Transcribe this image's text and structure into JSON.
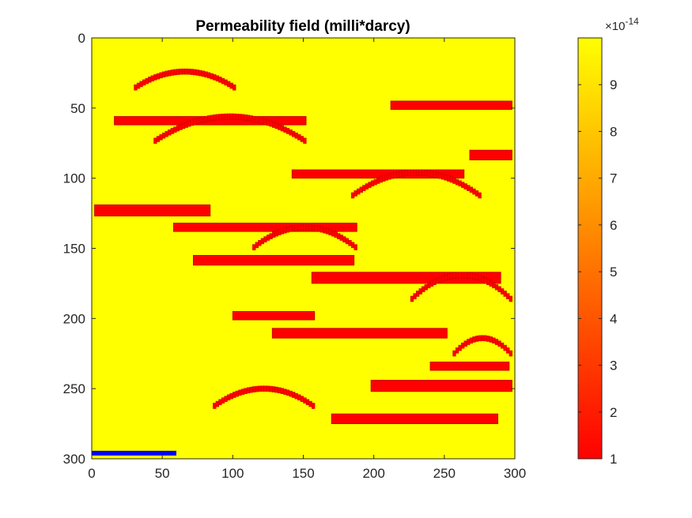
{
  "chart_data": {
    "type": "heatmap",
    "title": "Permeability field (milli*darcy)",
    "xlabel": "",
    "ylabel": "",
    "xlim": [
      0,
      300
    ],
    "ylim": [
      0,
      300
    ],
    "y_reversed": true,
    "xticks": [
      0,
      50,
      100,
      150,
      200,
      250,
      300
    ],
    "yticks": [
      0,
      50,
      100,
      150,
      200,
      250,
      300
    ],
    "background_value": 1e-13,
    "background_color": "#ffff00",
    "channel_color": "#ff0000",
    "channel_edge_color": "#b80000",
    "channel_value": 1e-14,
    "colorbar": {
      "min": 1,
      "max": 10,
      "ticks": [
        1,
        2,
        3,
        4,
        5,
        6,
        7,
        8,
        9
      ],
      "multiplier": "×10",
      "exponent": "-14",
      "colormap": "autumn"
    },
    "bars": [
      {
        "x0": 212,
        "x1": 298,
        "y0": 45,
        "y1": 51
      },
      {
        "x0": 16,
        "x1": 152,
        "y0": 56,
        "y1": 62
      },
      {
        "x0": 268,
        "x1": 298,
        "y0": 80,
        "y1": 87
      },
      {
        "x0": 142,
        "x1": 264,
        "y0": 94,
        "y1": 100
      },
      {
        "x0": 2,
        "x1": 84,
        "y0": 119,
        "y1": 127
      },
      {
        "x0": 58,
        "x1": 188,
        "y0": 132,
        "y1": 138
      },
      {
        "x0": 72,
        "x1": 186,
        "y0": 155,
        "y1": 162
      },
      {
        "x0": 156,
        "x1": 290,
        "y0": 167,
        "y1": 175
      },
      {
        "x0": 100,
        "x1": 158,
        "y0": 195,
        "y1": 201
      },
      {
        "x0": 128,
        "x1": 252,
        "y0": 207,
        "y1": 214
      },
      {
        "x0": 240,
        "x1": 296,
        "y0": 231,
        "y1": 237
      },
      {
        "x0": 198,
        "x1": 298,
        "y0": 244,
        "y1": 252
      },
      {
        "x0": 170,
        "x1": 288,
        "y0": 268,
        "y1": 275
      }
    ],
    "arcs": [
      {
        "x0": 30,
        "x1": 102,
        "y_top": 22,
        "y_end": 34
      },
      {
        "x0": 44,
        "x1": 152,
        "y_top": 54,
        "y_end": 72
      },
      {
        "x0": 184,
        "x1": 276,
        "y_top": 94,
        "y_end": 111
      },
      {
        "x0": 114,
        "x1": 188,
        "y_top": 133,
        "y_end": 148
      },
      {
        "x0": 226,
        "x1": 298,
        "y_top": 167,
        "y_end": 185
      },
      {
        "x0": 256,
        "x1": 298,
        "y_top": 212,
        "y_end": 224
      },
      {
        "x0": 86,
        "x1": 158,
        "y_top": 248,
        "y_end": 261
      }
    ],
    "well_marker": {
      "x0": 0,
      "x1": 60,
      "y": 296,
      "color": "#0000ff"
    }
  }
}
